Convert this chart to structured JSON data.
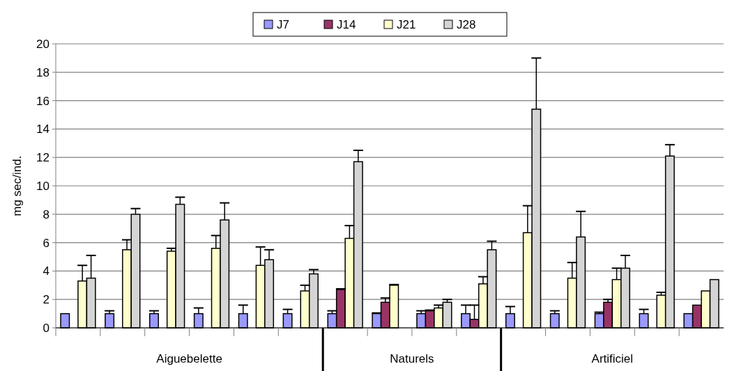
{
  "chart_data": {
    "type": "bar",
    "ylabel": "mg sec/ind.",
    "categories": [
      null,
      null,
      null,
      null,
      null,
      null,
      null,
      null,
      null,
      null,
      null,
      null,
      null,
      null,
      null
    ],
    "ylim": [
      0,
      20
    ],
    "yticks": [
      0,
      2,
      4,
      6,
      8,
      10,
      12,
      14,
      16,
      18,
      20
    ],
    "grid": "y",
    "legend": "top",
    "annotations": [
      "Aiguebelette",
      "Naturels",
      "Artificiel"
    ],
    "series": [
      {
        "name": "J7",
        "color": "#9999ff",
        "values": [
          1,
          1,
          1,
          1,
          1,
          1,
          1,
          1,
          1,
          1,
          1,
          1,
          1,
          1,
          1
        ],
        "errors": [
          null,
          [
            1,
            1.2
          ],
          [
            1,
            1.2
          ],
          [
            1,
            1.4
          ],
          [
            1,
            1.6
          ],
          [
            1,
            1.3
          ],
          [
            1,
            1.2
          ],
          [
            1,
            1.05
          ],
          [
            1,
            1.2
          ],
          [
            1,
            1.6
          ],
          [
            1,
            1.5
          ],
          [
            1,
            1.2
          ],
          [
            1,
            1.1
          ],
          [
            1,
            1.3
          ],
          null
        ]
      },
      {
        "name": "J14",
        "color": "#993366",
        "values": [
          null,
          null,
          null,
          null,
          null,
          null,
          2.7,
          1.8,
          1.2,
          0.6,
          null,
          null,
          1.8,
          null,
          1.6
        ],
        "errors": [
          null,
          null,
          null,
          null,
          null,
          null,
          [
            2.7,
            2.75
          ],
          [
            1.8,
            2.1
          ],
          [
            1.2,
            1.25
          ],
          [
            0.6,
            1.6
          ],
          null,
          null,
          [
            1.8,
            2
          ],
          null,
          null
        ]
      },
      {
        "name": "J21",
        "color": "#ffffcc",
        "values": [
          3.3,
          5.5,
          5.4,
          5.6,
          4.4,
          2.6,
          6.3,
          3,
          1.4,
          3.1,
          6.7,
          3.5,
          3.4,
          2.3,
          2.6
        ],
        "errors": [
          [
            3.3,
            4.4
          ],
          [
            5.5,
            6.2
          ],
          [
            5.4,
            5.6
          ],
          [
            5.6,
            6.5
          ],
          [
            4.4,
            5.7
          ],
          [
            2.6,
            3
          ],
          [
            6.3,
            7.2
          ],
          [
            3,
            3.05
          ],
          [
            1.4,
            1.6
          ],
          [
            3.1,
            3.6
          ],
          [
            6.7,
            8.6
          ],
          [
            3.5,
            4.6
          ],
          [
            3.4,
            4.2
          ],
          [
            2.3,
            2.5
          ],
          null
        ]
      },
      {
        "name": "J28",
        "color": "#d4d4d4",
        "values": [
          3.5,
          8,
          8.7,
          7.6,
          4.8,
          3.8,
          11.7,
          null,
          1.8,
          5.5,
          15.4,
          6.4,
          4.2,
          12.1,
          3.4
        ],
        "errors": [
          [
            3.5,
            5.1
          ],
          [
            8,
            8.4
          ],
          [
            8.7,
            9.2
          ],
          [
            7.6,
            8.8
          ],
          [
            4.8,
            5.5
          ],
          [
            3.8,
            4.1
          ],
          [
            11.7,
            12.5
          ],
          null,
          [
            1.8,
            2
          ],
          [
            5.5,
            6.1
          ],
          [
            15.4,
            19
          ],
          [
            6.4,
            8.2
          ],
          [
            4.2,
            5.1
          ],
          [
            12.1,
            12.9
          ],
          null
        ]
      }
    ]
  }
}
